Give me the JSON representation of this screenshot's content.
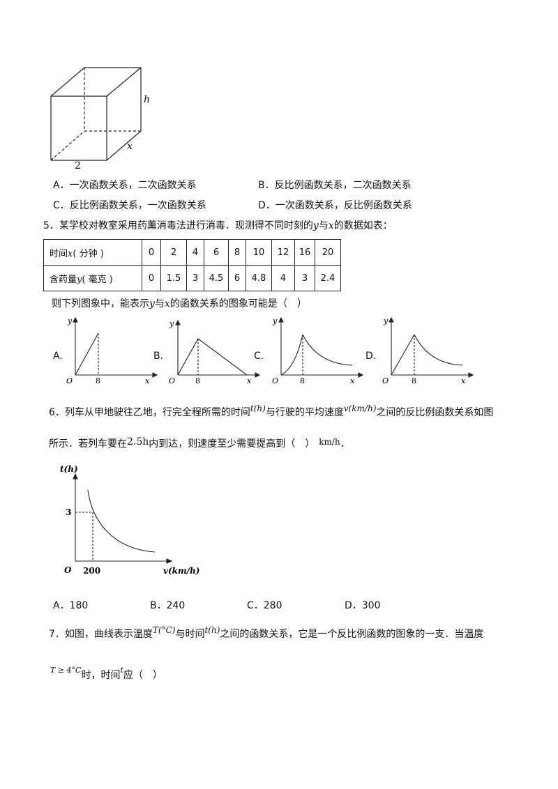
{
  "cube": {
    "label_h": "h",
    "label_x": "x",
    "label_2": "2"
  },
  "q4_options": {
    "A": "A．一次函数关系，二次函数关系",
    "B": "B．反比例函数关系，二次函数关系",
    "C": "C．反比例函数关系，一次函数关系",
    "D": "D．一次函数关系，反比例函数关系"
  },
  "q5": {
    "stem_pre": "5．某学校对教室采用药薰消毒法进行消毒．现测得不同时刻的",
    "var_y": "y",
    "mid": "与",
    "var_x": "x",
    "stem_post": "的数据如表：",
    "table": {
      "row1_label": "时间",
      "row1_var": "x",
      "row1_unit": "( 分钟 )",
      "row2_label": "含药量",
      "row2_var": "y",
      "row2_unit": "( 毫克 )",
      "x_values": [
        "0",
        "2",
        "4",
        "6",
        "8",
        "10",
        "12",
        "16",
        "20"
      ],
      "y_values": [
        "0",
        "1.5",
        "3",
        "4.5",
        "6",
        "4.8",
        "4",
        "3",
        "2.4"
      ]
    },
    "question_pre": "则下列图象中，能表示",
    "question_post": "的函数关系的图象可能是（　）",
    "graph_labels": [
      "A.",
      "B.",
      "C.",
      "D."
    ],
    "axis_y": "y",
    "axis_x": "x",
    "axis_o": "O",
    "tick": "8"
  },
  "q6": {
    "stem_pre": "6．列车从甲地驶往乙地，行完全程所需的时间",
    "t_unit": "t(h)",
    "stem_mid": "与行驶的平均速度",
    "v_unit": "v(km/h)",
    "stem_post": "之间的反比例函数关系如图",
    "line2_pre": "所示．若列车要在",
    "time_val": "2.5h",
    "line2_mid": "内到达，则速度至少需要提高到（　）",
    "speed_unit": "km/h",
    "period": "．",
    "graph": {
      "y_label": "t(h)",
      "x_label": "v(km/h)",
      "origin": "O",
      "y_tick": "3",
      "x_tick": "200"
    },
    "options": [
      "A．180",
      "B．240",
      "C．280",
      "D．300"
    ]
  },
  "q7": {
    "stem_pre": "7．如图，曲线表示温度",
    "T_unit": "T(°C)",
    "stem_mid": "与时间",
    "t_unit": "t(h)",
    "stem_post": "之间的函数关系，它是一个反比例函数的图象的一支．当温度",
    "cond": "T ≥ 4°C",
    "line2_mid": "时，时间",
    "t_var": "t",
    "line2_post": "应（　）"
  }
}
